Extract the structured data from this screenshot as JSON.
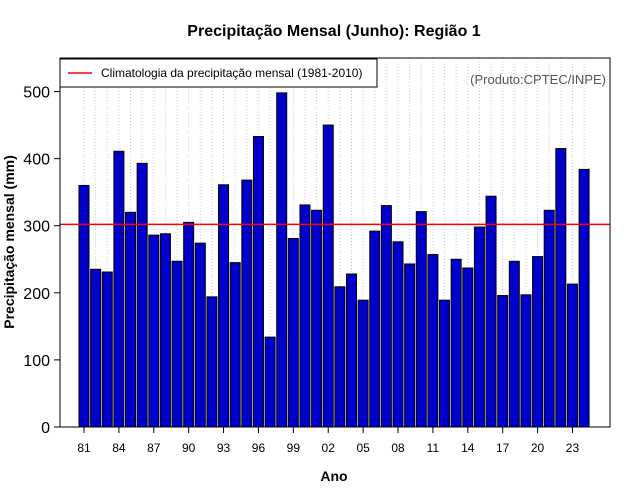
{
  "chart_data": {
    "type": "bar",
    "title": "Precipitação Mensal (Junho): Região 1",
    "xlabel": "Ano",
    "ylabel": "Precipitação mensal (mm)",
    "credit": "(Produto:CPTEC/INPE)",
    "ylim": [
      0,
      550
    ],
    "yticks": [
      0,
      100,
      200,
      300,
      400,
      500
    ],
    "categories": [
      "81",
      "82",
      "83",
      "84",
      "85",
      "86",
      "87",
      "88",
      "89",
      "90",
      "91",
      "92",
      "93",
      "94",
      "95",
      "96",
      "97",
      "98",
      "99",
      "00",
      "01",
      "02",
      "03",
      "04",
      "05",
      "06",
      "07",
      "08",
      "09",
      "10",
      "11",
      "12",
      "13",
      "14",
      "15",
      "16",
      "17",
      "18",
      "19",
      "20",
      "21",
      "22",
      "23",
      "24"
    ],
    "tick_labels": [
      "81",
      "84",
      "87",
      "90",
      "93",
      "96",
      "99",
      "02",
      "05",
      "08",
      "11",
      "14",
      "17",
      "20",
      "23"
    ],
    "values": [
      360,
      235,
      231,
      411,
      320,
      393,
      286,
      288,
      247,
      305,
      274,
      194,
      361,
      245,
      368,
      433,
      134,
      498,
      281,
      331,
      323,
      450,
      209,
      228,
      189,
      292,
      330,
      276,
      243,
      321,
      257,
      189,
      250,
      237,
      298,
      344,
      196,
      247,
      197,
      254,
      323,
      415,
      213,
      384
    ],
    "climatology": {
      "label": "Climatologia da precipitação mensal (1981-2010)",
      "value": 302
    },
    "grid": "vertical dotted",
    "legend": "top-left",
    "colors": {
      "bar": "#0000cc",
      "bar_edge": "#000000",
      "climatology": "#ff0000",
      "grid": "#c8c8c8",
      "credit": "#555555"
    }
  }
}
